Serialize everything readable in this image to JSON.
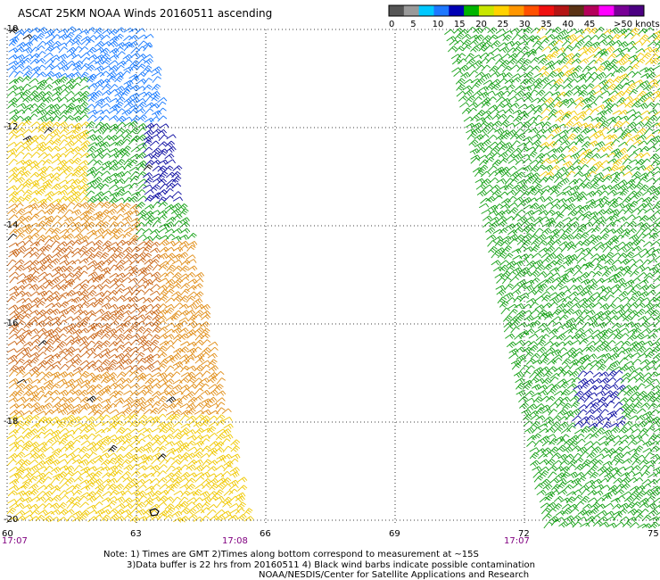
{
  "title": "ASCAT 25KM NOAA Winds 20160511 ascending",
  "legend": {
    "unit_label": ">50 knots",
    "ticks": [
      "0",
      "5",
      "10",
      "15",
      "20",
      "25",
      "30",
      "35",
      "40",
      "45"
    ],
    "colors": [
      "#555555",
      "#9a9a9a",
      "#00c8ff",
      "#1e78ff",
      "#0000b4",
      "#00b400",
      "#c8e600",
      "#ffd200",
      "#ff9600",
      "#ff5000",
      "#f01010",
      "#b41414",
      "#5a3214",
      "#b4005a",
      "#ff00ff",
      "#780096",
      "#4b0082"
    ]
  },
  "axes": {
    "lat_labels": [
      "-10",
      "-12",
      "-14",
      "-16",
      "-18",
      "-20"
    ],
    "lon_labels": [
      "60",
      "63",
      "66",
      "69",
      "72",
      "75"
    ],
    "time_labels": [
      "17:07",
      "17:08",
      "17:07"
    ],
    "time_label_color": "#800080"
  },
  "notes": {
    "line1": "Note: 1) Times are GMT 2)Times along bottom correspond to measurement at ~15S",
    "line2": "3)Data buffer is 22 hrs from 20160511 4) Black wind barbs indicate possible contamination",
    "line3": "NOAA/NESDIS/Center for Satellite Applications and Research"
  },
  "map": {
    "swath_colors": {
      "calm_dark_blue": "#0a0aa0",
      "light_blue": "#1478ff",
      "green": "#14a014",
      "yellow": "#f0c800",
      "orange": "#e08c14",
      "dark_orange": "#c86414",
      "contaminated": "#000000"
    }
  }
}
